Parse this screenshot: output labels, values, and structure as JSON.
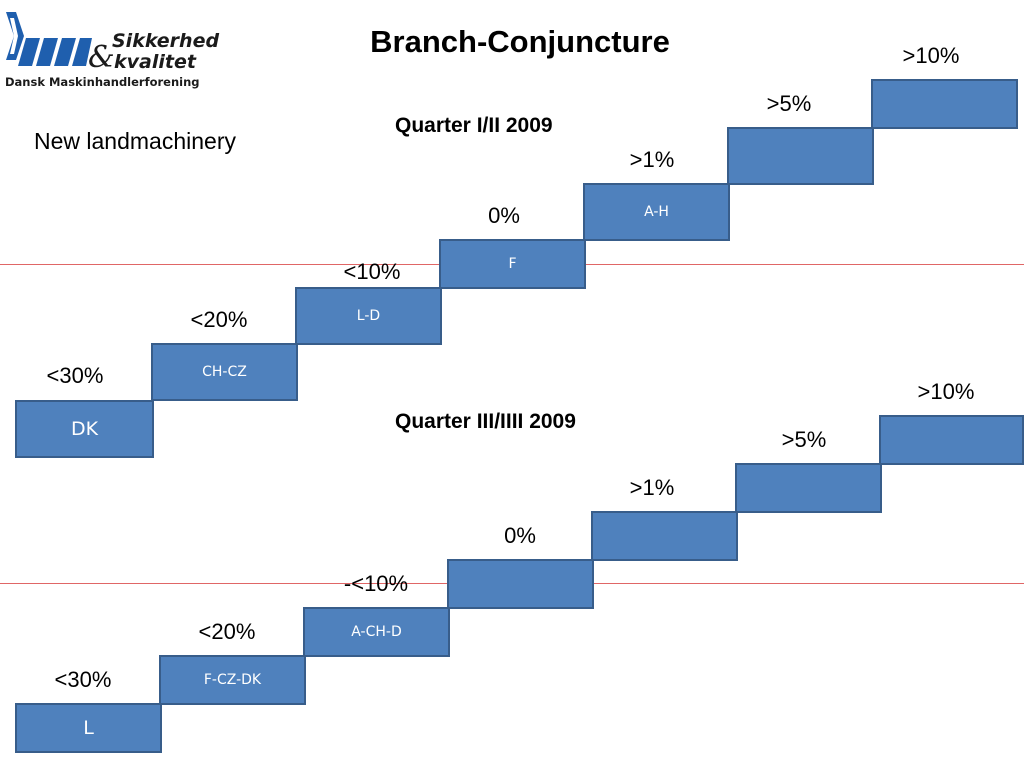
{
  "logo": {
    "line1": "Sikkerhed",
    "ampersand": "&",
    "line2": "kvalitet",
    "organization": "Dansk Maskinhandlerforening",
    "colors": {
      "stripes": "#1f5fae",
      "text": "#1b1b1b"
    }
  },
  "title": "Branch-Conjuncture",
  "subtitle": "New landmachinery",
  "quarters": [
    {
      "title": "Quarter I/II 2009",
      "steps": [
        {
          "percent": "<30%",
          "countries": "DK"
        },
        {
          "percent": "<20%",
          "countries": "CH-CZ"
        },
        {
          "percent": "<10%",
          "countries": "L-D"
        },
        {
          "percent": "0%",
          "countries": "F"
        },
        {
          "percent": ">1%",
          "countries": "A-H"
        },
        {
          "percent": ">5%",
          "countries": ""
        },
        {
          "percent": ">10%",
          "countries": ""
        }
      ]
    },
    {
      "title": "Quarter III/IIII 2009",
      "steps": [
        {
          "percent": "<30%",
          "countries": "L"
        },
        {
          "percent": "<20%",
          "countries": "F-CZ-DK"
        },
        {
          "percent": "-<10%",
          "countries": "A-CH-D"
        },
        {
          "percent": "0%",
          "countries": ""
        },
        {
          "percent": ">1%",
          "countries": ""
        },
        {
          "percent": ">5%",
          "countries": ""
        },
        {
          "percent": ">10%",
          "countries": ""
        }
      ]
    }
  ],
  "colors": {
    "step_fill": "#4f81bd",
    "step_border": "#385d8a",
    "reference_line": "#e06666"
  }
}
